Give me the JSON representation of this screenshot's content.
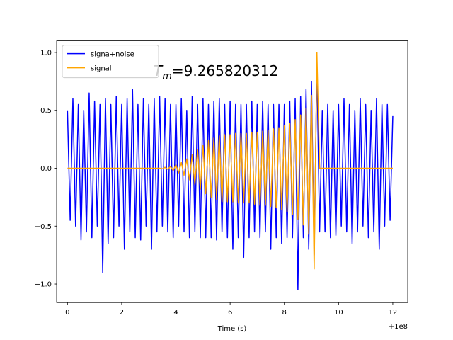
{
  "chart_data": {
    "type": "line",
    "xlabel": "Time (s)",
    "offset_text": "+1e8",
    "annotation": {
      "symbol": "T",
      "subscript": "m",
      "text": "=9.265820312"
    },
    "legend": "upper left",
    "grid": false,
    "xlim": [
      99999999.6,
      100000012.55
    ],
    "ylim": [
      -1.16,
      1.1
    ],
    "xticks": [
      {
        "value": 100000000,
        "label": "0"
      },
      {
        "value": 100000002,
        "label": "2"
      },
      {
        "value": 100000004,
        "label": "4"
      },
      {
        "value": 100000006,
        "label": "6"
      },
      {
        "value": 100000008,
        "label": "8"
      },
      {
        "value": 100000010,
        "label": "10"
      },
      {
        "value": 100000012,
        "label": "12"
      }
    ],
    "yticks": [
      {
        "value": -1,
        "label": "−1.0"
      },
      {
        "value": -0.5,
        "label": "−0.5"
      },
      {
        "value": 0,
        "label": "0.0"
      },
      {
        "value": 0.5,
        "label": "0.5"
      },
      {
        "value": 1,
        "label": "1.0"
      }
    ],
    "x": [
      100000000,
      100000000.1,
      100000000.2,
      100000000.3,
      100000000.4,
      100000000.5,
      100000000.6,
      100000000.7,
      100000000.8,
      100000000.9,
      100000001,
      100000001.1,
      100000001.2,
      100000001.3,
      100000001.4,
      100000001.5,
      100000001.6,
      100000001.7,
      100000001.8,
      100000001.9,
      100000002,
      100000002.1,
      100000002.2,
      100000002.3,
      100000002.4,
      100000002.5,
      100000002.6,
      100000002.7,
      100000002.8,
      100000002.9,
      100000003,
      100000003.1,
      100000003.2,
      100000003.3,
      100000003.4,
      100000003.5,
      100000003.6,
      100000003.7,
      100000003.8,
      100000003.9,
      100000004,
      100000004.1,
      100000004.2,
      100000004.3,
      100000004.4,
      100000004.5,
      100000004.6,
      100000004.7,
      100000004.8,
      100000004.9,
      100000005,
      100000005.1,
      100000005.2,
      100000005.3,
      100000005.4,
      100000005.5,
      100000005.6,
      100000005.7,
      100000005.8,
      100000005.9,
      100000006,
      100000006.1,
      100000006.2,
      100000006.3,
      100000006.4,
      100000006.5,
      100000006.6,
      100000006.7,
      100000006.8,
      100000006.9,
      100000007,
      100000007.1,
      100000007.2,
      100000007.3,
      100000007.4,
      100000007.5,
      100000007.6,
      100000007.7,
      100000007.8,
      100000007.9,
      100000008,
      100000008.1,
      100000008.2,
      100000008.3,
      100000008.4,
      100000008.5,
      100000008.6,
      100000008.7,
      100000008.8,
      100000008.9,
      100000009,
      100000009.1,
      100000009.2,
      100000009.3,
      100000009.4,
      100000009.5,
      100000009.6,
      100000009.7,
      100000009.8,
      100000009.9,
      100000010,
      100000010.1,
      100000010.2,
      100000010.3,
      100000010.4,
      100000010.5,
      100000010.6,
      100000010.7,
      100000010.8,
      100000010.9,
      100000011,
      100000011.1,
      100000011.2,
      100000011.3,
      100000011.4,
      100000011.5,
      100000011.6,
      100000011.7,
      100000011.8,
      100000011.9,
      100000012
    ],
    "series": [
      {
        "name": "signa+noise",
        "color": "#0000ff",
        "values": [
          0.5,
          -0.45,
          0.6,
          -0.5,
          0.55,
          -0.62,
          0.5,
          -0.55,
          0.65,
          -0.6,
          0.58,
          -0.5,
          0.55,
          -0.9,
          0.6,
          -0.65,
          0.55,
          -0.6,
          0.62,
          -0.5,
          0.55,
          -0.7,
          0.6,
          -0.55,
          0.68,
          -0.6,
          0.55,
          -0.62,
          0.6,
          -0.5,
          0.55,
          -0.7,
          0.6,
          -0.55,
          0.62,
          -0.5,
          0.6,
          -0.55,
          0.55,
          -0.6,
          0.55,
          -0.5,
          0.6,
          -0.55,
          0.5,
          -0.6,
          0.62,
          -0.55,
          0.55,
          -0.6,
          0.6,
          -0.6,
          0.55,
          -0.6,
          0.58,
          -0.62,
          0.6,
          -0.55,
          0.55,
          -0.6,
          0.58,
          -0.7,
          0.55,
          -0.6,
          0.55,
          -0.77,
          0.55,
          -0.6,
          0.58,
          -0.55,
          0.55,
          -0.6,
          0.58,
          -0.55,
          0.55,
          -0.7,
          0.55,
          -0.6,
          0.55,
          -0.65,
          0.55,
          -0.6,
          0.58,
          -0.6,
          0.6,
          -1.05,
          0.62,
          -0.6,
          0.68,
          -0.7,
          0.75,
          -0.75,
          0.9,
          -0.55,
          0.5,
          -0.55,
          0.55,
          -0.6,
          0.5,
          -0.58,
          0.55,
          -0.5,
          0.6,
          -0.55,
          0.55,
          -0.65,
          0.5,
          -0.55,
          0.6,
          -0.5,
          0.55,
          -0.6,
          0.5,
          -0.55,
          0.6,
          -0.7,
          0.55,
          -0.5,
          0.55,
          -0.45,
          0.45
        ]
      },
      {
        "name": "signal",
        "color": "#ffa500",
        "values": [
          0,
          0,
          0,
          0,
          0,
          0,
          0,
          0,
          0,
          0,
          0,
          0,
          0,
          0,
          0,
          0,
          0,
          0,
          0,
          0,
          0,
          0,
          0,
          0,
          0,
          0,
          0,
          0,
          0,
          0,
          0,
          0,
          0,
          0,
          0,
          -0.005,
          0.008,
          -0.01,
          0.015,
          -0.02,
          0.03,
          -0.04,
          0.05,
          -0.06,
          0.08,
          -0.1,
          0.12,
          -0.14,
          0.16,
          -0.18,
          0.2,
          -0.22,
          0.24,
          -0.25,
          0.26,
          -0.27,
          0.28,
          -0.29,
          0.29,
          -0.29,
          0.29,
          -0.29,
          0.3,
          -0.3,
          0.3,
          -0.3,
          0.3,
          -0.3,
          0.31,
          -0.31,
          0.31,
          -0.32,
          0.32,
          -0.32,
          0.33,
          -0.33,
          0.34,
          -0.34,
          0.35,
          -0.36,
          0.37,
          -0.38,
          0.39,
          -0.4,
          0.42,
          -0.44,
          0.46,
          -0.49,
          0.52,
          -0.57,
          0.63,
          -0.87,
          1.0,
          0,
          0,
          0,
          0,
          0,
          0,
          0,
          0,
          0,
          0,
          0,
          0,
          0,
          0,
          0,
          0,
          0,
          0,
          0,
          0,
          0,
          0,
          0,
          0,
          0,
          0,
          0,
          0
        ]
      }
    ]
  }
}
